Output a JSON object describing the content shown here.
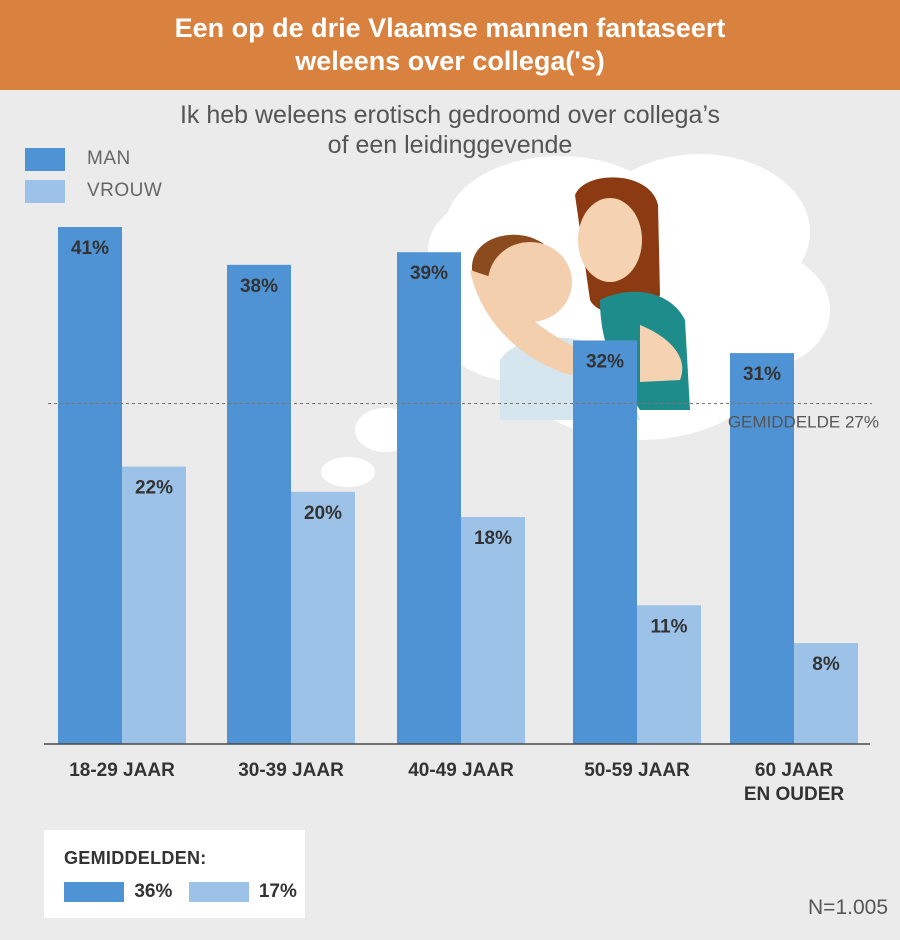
{
  "header": {
    "title_line1": "Een op de drie Vlaamse mannen fantaseert",
    "title_line2": "weleens over collega('s)"
  },
  "chart_data": {
    "type": "bar",
    "title": "Een op de drie Vlaamse mannen fantaseert weleens over collega('s)",
    "subtitle_line1": "Ik heb weleens erotisch gedroomd over collega’s",
    "subtitle_line2": "of een leidinggevende",
    "categories": [
      [
        "18-29 JAAR"
      ],
      [
        "30-39 JAAR"
      ],
      [
        "40-49 JAAR"
      ],
      [
        "50-59 JAAR"
      ],
      [
        "60 JAAR",
        "EN OUDER"
      ]
    ],
    "series": [
      {
        "name": "MAN",
        "values": [
          41,
          38,
          39,
          32,
          31
        ],
        "labels": [
          "41%",
          "38%",
          "39%",
          "32%",
          "31%"
        ],
        "color": "#4f93d4"
      },
      {
        "name": "VROUW",
        "values": [
          22,
          20,
          18,
          11,
          8
        ],
        "labels": [
          "22%",
          "20%",
          "18%",
          "11%",
          "8%"
        ],
        "color": "#9dc2e8"
      }
    ],
    "ylim": [
      0,
      41
    ],
    "reference_line": {
      "value": 27,
      "label": "GEMIDDELDE 27%"
    },
    "legend": "top-left",
    "grid": false
  },
  "averages": {
    "title": "GEMIDDELDEN:",
    "man": "36%",
    "vrouw": "17%"
  },
  "sample_note": "N=1.005",
  "colors": {
    "header": "#d9813f",
    "man": "#4f93d4",
    "vrouw": "#9dc2e8",
    "background": "#ebebeb",
    "cloud": "#ffffff"
  },
  "icons": [
    "thought-cloud-illustration",
    "embracing-couple-illustration"
  ]
}
